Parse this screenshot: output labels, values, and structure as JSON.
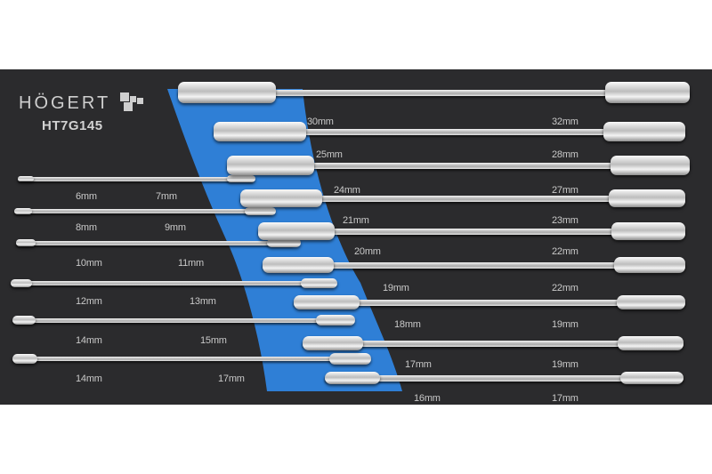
{
  "brand": {
    "name": "HÖGERT",
    "model": "HT7G145"
  },
  "colors": {
    "foam": "#2b2b2d",
    "accent_band": "#2f7fd6",
    "label": "#c9c9c9",
    "background": "#ffffff"
  },
  "left_wrenches": [
    {
      "open_end": "6mm",
      "ring_end": "7mm"
    },
    {
      "open_end": "8mm",
      "ring_end": "9mm"
    },
    {
      "open_end": "10mm",
      "ring_end": "11mm"
    },
    {
      "open_end": "12mm",
      "ring_end": "13mm"
    },
    {
      "open_end": "14mm",
      "ring_end": "15mm"
    },
    {
      "open_end": "14mm",
      "ring_end": "17mm"
    }
  ],
  "right_wrenches": [
    {
      "ring_end": "30mm",
      "open_end": "32mm"
    },
    {
      "ring_end": "25mm",
      "open_end": "28mm"
    },
    {
      "ring_end": "24mm",
      "open_end": "27mm"
    },
    {
      "ring_end": "21mm",
      "open_end": "23mm"
    },
    {
      "ring_end": "20mm",
      "open_end": "22mm"
    },
    {
      "ring_end": "19mm",
      "open_end": "22mm"
    },
    {
      "ring_end": "18mm",
      "open_end": "19mm"
    },
    {
      "ring_end": "17mm",
      "open_end": "19mm"
    },
    {
      "ring_end": "16mm",
      "open_end": "17mm"
    }
  ]
}
